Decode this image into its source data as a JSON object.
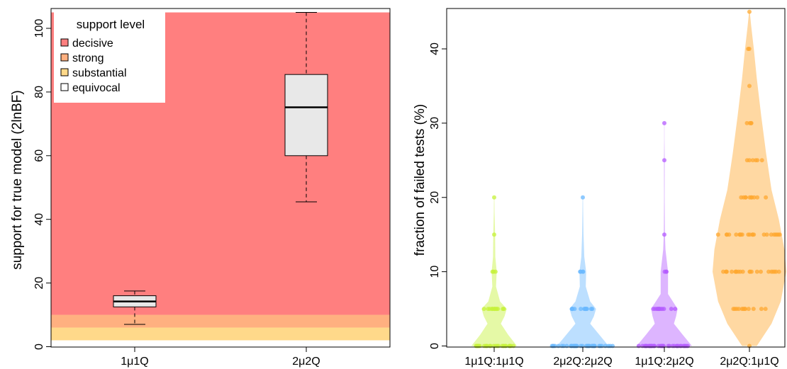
{
  "chart_data": [
    {
      "type": "box",
      "title": "",
      "xlabel": "",
      "ylabel": "support for true model (2lnBF)",
      "ylim": [
        0,
        105
      ],
      "yticks": [
        0,
        20,
        40,
        60,
        80,
        100
      ],
      "categories": [
        "1μ1Q",
        "2μ2Q"
      ],
      "boxes": [
        {
          "category": "1μ1Q",
          "min": 7,
          "q1": 12.5,
          "median": 14.2,
          "q3": 16,
          "max": 17.5
        },
        {
          "category": "2μ2Q",
          "min": 45.5,
          "q1": 60,
          "median": 75.2,
          "q3": 85.5,
          "max": 105
        }
      ],
      "background_bands": [
        {
          "label": "decisive",
          "from": 10,
          "to": 105,
          "color": "#ff7f7f"
        },
        {
          "label": "strong",
          "from": 6,
          "to": 10,
          "color": "#ffb080"
        },
        {
          "label": "substantial",
          "from": 2,
          "to": 6,
          "color": "#ffd98a"
        },
        {
          "label": "equivocal",
          "from": 0,
          "to": 2,
          "color": "#ffffff"
        }
      ],
      "legend": {
        "title": "support level",
        "position": "top-left",
        "entries": [
          {
            "label": "decisive",
            "color": "#ff7f7f"
          },
          {
            "label": "strong",
            "color": "#ffb080"
          },
          {
            "label": "substantial",
            "color": "#ffd98a"
          },
          {
            "label": "equivocal",
            "color": "#ffffff"
          }
        ]
      },
      "box_color": "#e8e8e8",
      "grid": false
    },
    {
      "type": "violin",
      "title": "",
      "xlabel": "",
      "ylabel": "fraction of failed tests (%)",
      "ylim": [
        0,
        45
      ],
      "yticks": [
        0,
        10,
        20,
        30,
        40
      ],
      "categories": [
        "1μ1Q:1μ1Q",
        "2μ2Q:2μ2Q",
        "1μ1Q:2μ2Q",
        "2μ2Q:1μ1Q"
      ],
      "series": [
        {
          "category": "1μ1Q:1μ1Q",
          "color": "#c6f23a",
          "density": [
            [
              0,
              0.62
            ],
            [
              1.5,
              0.38
            ],
            [
              3,
              0.18
            ],
            [
              4,
              0.28
            ],
            [
              5,
              0.34
            ],
            [
              6,
              0.16
            ],
            [
              8,
              0.05
            ],
            [
              10,
              0.07
            ],
            [
              12,
              0.03
            ],
            [
              15,
              0.025
            ],
            [
              18,
              0.01
            ],
            [
              20,
              0.005
            ]
          ],
          "points": [
            {
              "value": 0,
              "count": 30,
              "spread": 0.55
            },
            {
              "value": 5,
              "count": 12,
              "spread": 0.28
            },
            {
              "value": 10,
              "count": 3,
              "spread": 0.05
            },
            {
              "value": 15,
              "count": 1,
              "spread": 0
            },
            {
              "value": 20,
              "count": 1,
              "spread": 0
            }
          ]
        },
        {
          "category": "2μ2Q:2μ2Q",
          "color": "#6ab8ff",
          "density": [
            [
              0,
              0.7
            ],
            [
              1.5,
              0.45
            ],
            [
              3,
              0.2
            ],
            [
              4,
              0.3
            ],
            [
              5,
              0.36
            ],
            [
              6,
              0.2
            ],
            [
              8,
              0.08
            ],
            [
              10,
              0.09
            ],
            [
              12,
              0.04
            ],
            [
              15,
              0.02
            ],
            [
              18,
              0.01
            ],
            [
              20,
              0.005
            ]
          ],
          "points": [
            {
              "value": 0,
              "count": 40,
              "spread": 0.85
            },
            {
              "value": 5,
              "count": 14,
              "spread": 0.3
            },
            {
              "value": 10,
              "count": 4,
              "spread": 0.08
            },
            {
              "value": 20,
              "count": 1,
              "spread": 0
            }
          ]
        },
        {
          "category": "1μ1Q:2μ2Q",
          "color": "#b45cff",
          "density": [
            [
              0,
              0.75
            ],
            [
              1.5,
              0.5
            ],
            [
              3,
              0.26
            ],
            [
              4,
              0.32
            ],
            [
              5,
              0.36
            ],
            [
              7,
              0.1
            ],
            [
              10,
              0.1
            ],
            [
              13,
              0.03
            ],
            [
              15,
              0.015
            ],
            [
              20,
              0.008
            ],
            [
              25,
              0.01
            ],
            [
              28,
              0.004
            ],
            [
              30,
              0.003
            ]
          ],
          "points": [
            {
              "value": 0,
              "count": 38,
              "spread": 0.7
            },
            {
              "value": 5,
              "count": 12,
              "spread": 0.3
            },
            {
              "value": 10,
              "count": 3,
              "spread": 0.06
            },
            {
              "value": 15,
              "count": 1,
              "spread": 0
            },
            {
              "value": 25,
              "count": 1,
              "spread": 0
            },
            {
              "value": 30,
              "count": 1,
              "spread": 0
            }
          ]
        },
        {
          "category": "2μ2Q:1μ1Q",
          "color": "#ffa830",
          "density": [
            [
              0,
              0.2
            ],
            [
              3,
              0.6
            ],
            [
              6,
              0.85
            ],
            [
              10,
              1.0
            ],
            [
              13,
              0.95
            ],
            [
              17,
              0.8
            ],
            [
              21,
              0.6
            ],
            [
              26,
              0.45
            ],
            [
              31,
              0.32
            ],
            [
              36,
              0.2
            ],
            [
              40,
              0.12
            ],
            [
              43,
              0.05
            ],
            [
              45,
              0.01
            ]
          ],
          "points": [
            {
              "value": 0,
              "count": 1,
              "spread": 0
            },
            {
              "value": 5,
              "count": 12,
              "spread": 0.5
            },
            {
              "value": 10,
              "count": 22,
              "spread": 0.85
            },
            {
              "value": 15,
              "count": 22,
              "spread": 0.85
            },
            {
              "value": 20,
              "count": 10,
              "spread": 0.5
            },
            {
              "value": 25,
              "count": 6,
              "spread": 0.35
            },
            {
              "value": 30,
              "count": 4,
              "spread": 0.2
            },
            {
              "value": 35,
              "count": 1,
              "spread": 0
            },
            {
              "value": 40,
              "count": 2,
              "spread": 0.05
            },
            {
              "value": 45,
              "count": 1,
              "spread": 0
            }
          ]
        }
      ],
      "grid": false
    }
  ]
}
